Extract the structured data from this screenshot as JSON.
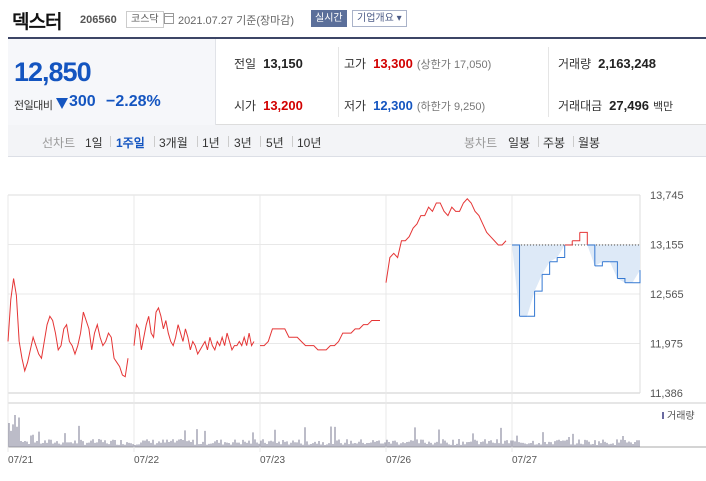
{
  "header": {
    "name": "덱스터",
    "code": "206560",
    "market": "코스닥",
    "date": "2021.07.27 기준(장마감)",
    "realtime": "실시간",
    "company_info": "기업개요 ▾"
  },
  "price": {
    "current": "12,850",
    "change_label": "전일대비",
    "change": "300",
    "change_pct": "−2.28%",
    "direction": "down"
  },
  "stats": {
    "prev_label": "전일",
    "prev": "13,150",
    "high_label": "고가",
    "high": "13,300",
    "upper_limit": "(상한가 17,050)",
    "volume_label": "거래량",
    "volume": "2,163,248",
    "open_label": "시가",
    "open": "13,200",
    "low_label": "저가",
    "low": "12,300",
    "lower_limit": "(하한가 9,250)",
    "amount_label": "거래대금",
    "amount": "27,496",
    "amount_unit": "백만"
  },
  "tabs": {
    "line_label": "선차트",
    "periods": [
      "1일",
      "1주일",
      "3개월",
      "1년",
      "3년",
      "5년",
      "10년"
    ],
    "active_period": "1주일",
    "candle_label": "봉차트",
    "candles": [
      "일봉",
      "주봉",
      "월봉"
    ]
  },
  "chart_data": {
    "type": "line",
    "y_ticks": [
      "13,745",
      "13,155",
      "12,565",
      "11,975",
      "11,386"
    ],
    "y_range": [
      11386,
      13745
    ],
    "x_ticks": [
      "07/21",
      "07/22",
      "07/23",
      "07/26",
      "07/27"
    ],
    "reference_price": 13150,
    "volume_legend": "거래량",
    "colors": {
      "up": "#e53535",
      "down": "#3478d2",
      "fill": "#dde9f7",
      "grid": "#e8e8e8"
    },
    "series": [
      {
        "day": "07/21",
        "values": [
          12000,
          12500,
          12750,
          12550,
          12000,
          11800,
          11650,
          11750,
          11900,
          12050,
          11950,
          11850,
          11800,
          12000,
          12200,
          12300,
          12250,
          12100,
          11900,
          11950,
          12150,
          12200,
          12000,
          11950,
          11850,
          11950,
          12100,
          12350,
          12250,
          12150,
          11900,
          12100,
          12200,
          12050,
          11950,
          12000,
          12100,
          12050,
          11800,
          11750,
          11700,
          11600,
          11580,
          11800
        ]
      },
      {
        "day": "07/22",
        "values": [
          11950,
          12200,
          12150,
          11900,
          12050,
          12200,
          12300,
          12100,
          12050,
          12350,
          12400,
          12300,
          12150,
          12250,
          12100,
          12000,
          11950,
          12050,
          12200,
          12100,
          12000,
          12150,
          12050,
          11900,
          12000,
          11950,
          11850,
          11900,
          11950,
          12000,
          11900,
          12050,
          11950,
          11900,
          12000,
          11950,
          12050,
          11950,
          12100,
          12000,
          11900,
          11950,
          11950,
          12000,
          11950,
          12050,
          11950,
          12100,
          11950,
          12000
        ]
      },
      {
        "day": "07/23",
        "values": [
          11950,
          11950,
          12000,
          12150,
          12150,
          12150,
          12150,
          12050,
          12050,
          12050,
          12000,
          11950,
          11950,
          11950,
          11900,
          11900,
          11900,
          11950,
          11950,
          12000,
          12100,
          12100,
          12100,
          12150,
          12150,
          12200,
          12200,
          12250,
          12250,
          12250
        ]
      },
      {
        "day": "07/26",
        "values": [
          12700,
          13000,
          13050,
          13000,
          13200,
          13200,
          13250,
          13350,
          13400,
          13500,
          13500,
          13600,
          13550,
          13650,
          13650,
          13550,
          13500,
          13600,
          13550,
          13550,
          13650,
          13700,
          13650,
          13550,
          13500,
          13400,
          13300,
          13250,
          13200,
          13150,
          13150,
          13200
        ]
      },
      {
        "day": "07/27",
        "values": [
          13150,
          12300,
          12300,
          12600,
          12800,
          12950,
          13000,
          13150,
          13200,
          13300,
          13150,
          12900,
          12950,
          12950,
          12750,
          12700,
          12700,
          12850
        ]
      }
    ]
  }
}
